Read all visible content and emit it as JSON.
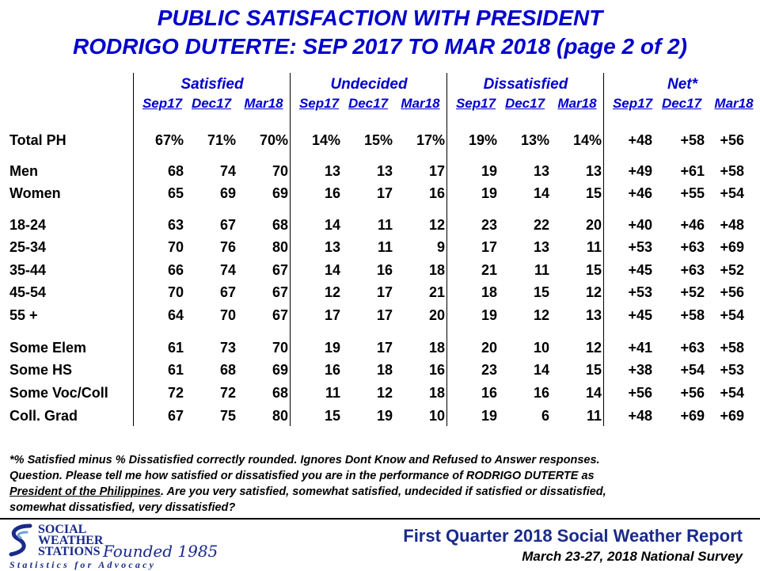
{
  "title": {
    "line1": "PUBLIC SATISFACTION  WITH PRESIDENT",
    "line2": "RODRIGO DUTERTE: SEP 2017 TO MAR 2018 (page 2 of 2)"
  },
  "groups": [
    "Satisfied",
    "Undecided",
    "Dissatisfied",
    "Net*"
  ],
  "periods": [
    "Sep17",
    "Dec17",
    "Mar18"
  ],
  "rows": [
    {
      "label": "Total PH",
      "values": [
        "67%",
        "71%",
        "70%",
        "14%",
        "15%",
        "17%",
        "19%",
        "13%",
        "14%",
        "+48",
        "+58",
        "+56"
      ]
    },
    {
      "label": "Men",
      "values": [
        "68",
        "74",
        "70",
        "13",
        "13",
        "17",
        "19",
        "13",
        "13",
        "+49",
        "+61",
        "+58"
      ]
    },
    {
      "label": "Women",
      "values": [
        "65",
        "69",
        "69",
        "16",
        "17",
        "16",
        "19",
        "14",
        "15",
        "+46",
        "+55",
        "+54"
      ]
    },
    {
      "label": "18-24",
      "values": [
        "63",
        "67",
        "68",
        "14",
        "11",
        "12",
        "23",
        "22",
        "20",
        "+40",
        "+46",
        "+48"
      ]
    },
    {
      "label": "25-34",
      "values": [
        "70",
        "76",
        "80",
        "13",
        "11",
        "9",
        "17",
        "13",
        "11",
        "+53",
        "+63",
        "+69"
      ]
    },
    {
      "label": "35-44",
      "values": [
        "66",
        "74",
        "67",
        "14",
        "16",
        "18",
        "21",
        "11",
        "15",
        "+45",
        "+63",
        "+52"
      ]
    },
    {
      "label": "45-54",
      "values": [
        "70",
        "67",
        "67",
        "12",
        "17",
        "21",
        "18",
        "15",
        "12",
        "+53",
        "+52",
        "+56"
      ]
    },
    {
      "label": "55 +",
      "values": [
        "64",
        "70",
        "67",
        "17",
        "17",
        "20",
        "19",
        "12",
        "13",
        "+45",
        "+58",
        "+54"
      ]
    },
    {
      "label": "Some Elem",
      "values": [
        "61",
        "73",
        "70",
        "19",
        "17",
        "18",
        "20",
        "10",
        "12",
        "+41",
        "+63",
        "+58"
      ]
    },
    {
      "label": "Some HS",
      "values": [
        "61",
        "68",
        "69",
        "16",
        "18",
        "16",
        "23",
        "14",
        "15",
        "+38",
        "+54",
        "+53"
      ]
    },
    {
      "label": "Some Voc/Coll",
      "values": [
        "72",
        "72",
        "68",
        "11",
        "12",
        "18",
        "16",
        "16",
        "14",
        "+56",
        "+56",
        "+54"
      ]
    },
    {
      "label": "Coll. Grad",
      "values": [
        "67",
        "75",
        "80",
        "15",
        "19",
        "10",
        "19",
        "6",
        "11",
        "+48",
        "+69",
        "+69"
      ]
    }
  ],
  "footnote": {
    "p1": "*% Satisfied minus % Dissatisfied correctly rounded. Ignores Dont Know and Refused to Answer responses.",
    "p2": "Question. Please tell me how satisfied or dissatisfied you are in the performance of RODRIGO DUTERTE as",
    "p3_underlined": "President of the Philippines",
    "p3_rest": ". Are you very satisfied, somewhat satisfied, undecided if satisfied or dissatisfied,",
    "p4": "somewhat dissatisfied, very dissatisfied?"
  },
  "logo": {
    "line1": "SOCIAL",
    "line2": "WEATHER",
    "line3": "STATIONS",
    "founded": "Founded 1985",
    "tagline": "Statistics for Advocacy"
  },
  "report": {
    "title": "First Quarter 2018 Social Weather Report",
    "subtitle": "March 23-27, 2018 National Survey"
  },
  "colors": {
    "title": "#0000cc",
    "logo": "#1a2a8a"
  }
}
